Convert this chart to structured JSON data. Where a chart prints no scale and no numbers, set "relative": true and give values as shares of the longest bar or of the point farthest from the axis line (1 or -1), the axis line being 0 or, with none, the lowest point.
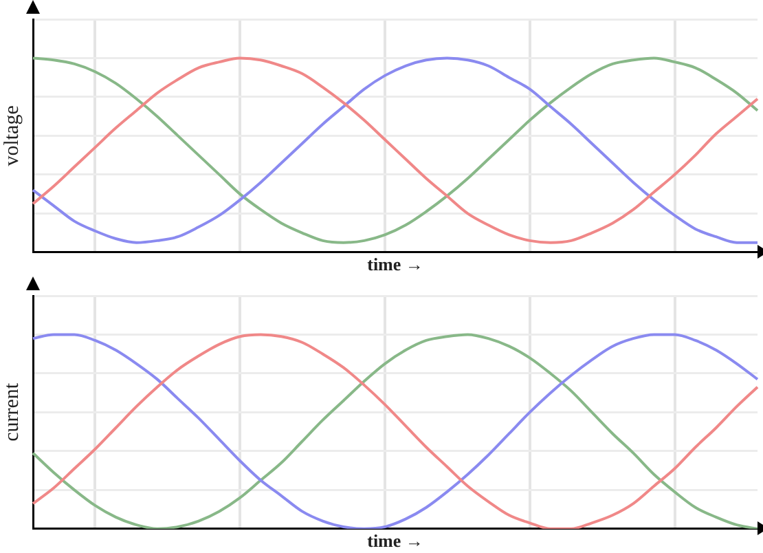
{
  "chart_data": [
    {
      "type": "line",
      "relative": true,
      "xlabel": "time →",
      "ylabel": "voltage",
      "grid": true,
      "legend": false,
      "marker": "none",
      "categories": [
        null,
        null,
        null,
        null,
        null,
        null,
        null,
        null,
        null,
        null,
        null,
        null,
        null,
        null,
        null,
        null,
        null,
        null,
        null,
        null,
        null,
        null,
        null,
        null,
        null,
        null,
        null,
        null,
        null,
        null,
        null,
        null,
        null,
        null,
        null,
        null
      ],
      "series": [
        {
          "color": "#f08888",
          "values": [
            0.25,
            0.34,
            0.44,
            0.54,
            0.64,
            0.73,
            0.82,
            0.89,
            0.95,
            0.98,
            1.0,
            0.99,
            0.96,
            0.92,
            0.85,
            0.77,
            0.68,
            0.58,
            0.48,
            0.38,
            0.29,
            0.2,
            0.14,
            0.09,
            0.06,
            0.05,
            0.06,
            0.1,
            0.15,
            0.22,
            0.31,
            0.4,
            0.5,
            0.61,
            0.7,
            0.79
          ]
        },
        {
          "color": "#8a8af0",
          "values": [
            0.32,
            0.24,
            0.16,
            0.11,
            0.07,
            0.05,
            0.06,
            0.08,
            0.13,
            0.19,
            0.27,
            0.36,
            0.46,
            0.56,
            0.66,
            0.75,
            0.84,
            0.91,
            0.96,
            0.99,
            1.0,
            0.99,
            0.96,
            0.9,
            0.84,
            0.75,
            0.66,
            0.56,
            0.46,
            0.36,
            0.27,
            0.19,
            0.12,
            0.08,
            0.05,
            0.05
          ]
        },
        {
          "color": "#88b888",
          "values": [
            1.0,
            0.99,
            0.97,
            0.93,
            0.87,
            0.79,
            0.7,
            0.6,
            0.5,
            0.4,
            0.3,
            0.22,
            0.15,
            0.1,
            0.06,
            0.05,
            0.06,
            0.09,
            0.14,
            0.21,
            0.29,
            0.38,
            0.48,
            0.58,
            0.68,
            0.77,
            0.85,
            0.92,
            0.97,
            0.99,
            1.0,
            0.98,
            0.95,
            0.89,
            0.82,
            0.73
          ]
        }
      ]
    },
    {
      "type": "line",
      "relative": true,
      "xlabel": "time →",
      "ylabel": "current",
      "grid": true,
      "legend": false,
      "marker": "none",
      "categories": [
        null,
        null,
        null,
        null,
        null,
        null,
        null,
        null,
        null,
        null,
        null,
        null,
        null,
        null,
        null,
        null,
        null,
        null,
        null,
        null,
        null,
        null,
        null,
        null,
        null,
        null,
        null,
        null,
        null,
        null,
        null,
        null,
        null,
        null,
        null,
        null
      ],
      "series": [
        {
          "color": "#f08888",
          "values": [
            0.13,
            0.21,
            0.31,
            0.41,
            0.52,
            0.63,
            0.73,
            0.82,
            0.89,
            0.95,
            0.99,
            1.0,
            0.99,
            0.96,
            0.9,
            0.83,
            0.74,
            0.64,
            0.53,
            0.42,
            0.32,
            0.22,
            0.14,
            0.07,
            0.03,
            0.0,
            0.0,
            0.03,
            0.07,
            0.13,
            0.22,
            0.31,
            0.42,
            0.52,
            0.63,
            0.73
          ]
        },
        {
          "color": "#8a8af0",
          "values": [
            0.98,
            1.0,
            1.0,
            0.97,
            0.92,
            0.85,
            0.77,
            0.67,
            0.57,
            0.46,
            0.35,
            0.25,
            0.17,
            0.09,
            0.04,
            0.01,
            0.0,
            0.01,
            0.05,
            0.11,
            0.19,
            0.28,
            0.38,
            0.49,
            0.6,
            0.7,
            0.79,
            0.87,
            0.94,
            0.98,
            1.0,
            1.0,
            0.97,
            0.92,
            0.85,
            0.77
          ]
        },
        {
          "color": "#88b888",
          "values": [
            0.39,
            0.29,
            0.2,
            0.12,
            0.06,
            0.02,
            0.0,
            0.01,
            0.04,
            0.09,
            0.16,
            0.25,
            0.34,
            0.45,
            0.56,
            0.66,
            0.76,
            0.85,
            0.92,
            0.97,
            0.99,
            1.0,
            0.98,
            0.94,
            0.88,
            0.8,
            0.71,
            0.6,
            0.49,
            0.39,
            0.28,
            0.19,
            0.11,
            0.06,
            0.02,
            0.0
          ]
        }
      ]
    }
  ]
}
